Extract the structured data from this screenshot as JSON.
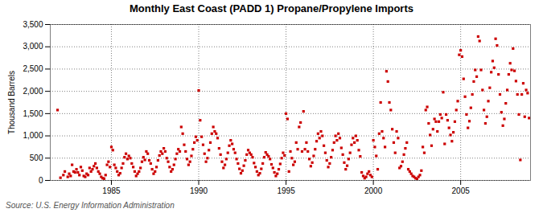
{
  "chart_data": {
    "type": "scatter",
    "title": "Monthly East Coast (PADD 1) Propane/Propylene Imports",
    "ylabel": "Thousand Barrels",
    "annotations": [
      "Source: U.S. Energy Information Administration"
    ],
    "color": "#cc0000",
    "marker": "square",
    "grid": true,
    "xlim": [
      1981.5,
      2009.0
    ],
    "xticks": [
      1985,
      1990,
      1995,
      2000,
      2005
    ],
    "ylim": [
      0,
      3500
    ],
    "yticks": [
      0,
      500,
      {
        "value": 1000,
        "label": "1,000"
      },
      {
        "value": 1500,
        "label": "1,500"
      },
      {
        "value": 2000,
        "label": "2,000"
      },
      {
        "value": 2500,
        "label": "2,500"
      },
      {
        "value": 3000,
        "label": "3,000"
      },
      {
        "value": 3500,
        "label": "3,500"
      }
    ],
    "x": [
      1981.917,
      1982.083,
      1982.25,
      1982.333,
      1982.5,
      1982.583,
      1982.667,
      1982.75,
      1982.833,
      1982.917,
      1983.0,
      1983.083,
      1983.167,
      1983.25,
      1983.333,
      1983.417,
      1983.5,
      1983.583,
      1983.667,
      1983.75,
      1983.833,
      1983.917,
      1984.0,
      1984.083,
      1984.167,
      1984.25,
      1984.333,
      1984.417,
      1984.5,
      1984.583,
      1984.667,
      1984.75,
      1984.833,
      1984.917,
      1985.0,
      1985.083,
      1985.167,
      1985.25,
      1985.333,
      1985.417,
      1985.5,
      1985.583,
      1985.667,
      1985.75,
      1985.833,
      1985.917,
      1986.0,
      1986.083,
      1986.167,
      1986.25,
      1986.333,
      1986.417,
      1986.5,
      1986.583,
      1986.667,
      1986.75,
      1986.833,
      1986.917,
      1987.0,
      1987.083,
      1987.167,
      1987.25,
      1987.333,
      1987.417,
      1987.5,
      1987.583,
      1987.667,
      1987.75,
      1987.833,
      1987.917,
      1988.0,
      1988.083,
      1988.167,
      1988.25,
      1988.333,
      1988.417,
      1988.5,
      1988.583,
      1988.667,
      1988.75,
      1988.833,
      1988.917,
      1989.0,
      1989.083,
      1989.167,
      1989.25,
      1989.333,
      1989.417,
      1989.5,
      1989.583,
      1989.667,
      1989.75,
      1989.833,
      1989.917,
      1990.0,
      1990.083,
      1990.167,
      1990.25,
      1990.333,
      1990.417,
      1990.5,
      1990.583,
      1990.667,
      1990.75,
      1990.833,
      1990.917,
      1991.0,
      1991.083,
      1991.167,
      1991.25,
      1991.333,
      1991.417,
      1991.5,
      1991.583,
      1991.667,
      1991.75,
      1991.833,
      1991.917,
      1992.0,
      1992.083,
      1992.167,
      1992.25,
      1992.333,
      1992.417,
      1992.5,
      1992.583,
      1992.667,
      1992.75,
      1992.833,
      1992.917,
      1993.0,
      1993.083,
      1993.167,
      1993.25,
      1993.333,
      1993.417,
      1993.5,
      1993.583,
      1993.667,
      1993.75,
      1993.833,
      1993.917,
      1994.0,
      1994.083,
      1994.167,
      1994.25,
      1994.333,
      1994.417,
      1994.5,
      1994.583,
      1994.667,
      1994.75,
      1994.833,
      1994.917,
      1995.0,
      1995.083,
      1995.167,
      1995.25,
      1995.333,
      1995.417,
      1995.5,
      1995.583,
      1995.667,
      1995.75,
      1995.833,
      1995.917,
      1996.0,
      1996.083,
      1996.167,
      1996.25,
      1996.333,
      1996.417,
      1996.5,
      1996.583,
      1996.667,
      1996.75,
      1996.833,
      1996.917,
      1997.0,
      1997.083,
      1997.167,
      1997.25,
      1997.333,
      1997.417,
      1997.5,
      1997.583,
      1997.667,
      1997.75,
      1997.833,
      1997.917,
      1998.0,
      1998.083,
      1998.167,
      1998.25,
      1998.333,
      1998.417,
      1998.5,
      1998.583,
      1998.667,
      1998.75,
      1998.833,
      1998.917,
      1999.0,
      1999.083,
      1999.167,
      1999.25,
      1999.333,
      1999.417,
      1999.5,
      1999.583,
      1999.667,
      1999.75,
      1999.833,
      1999.917,
      2000.0,
      2000.083,
      2000.167,
      2000.25,
      2000.333,
      2000.417,
      2000.5,
      2000.583,
      2000.667,
      2000.75,
      2000.833,
      2000.917,
      2001.0,
      2001.083,
      2001.167,
      2001.25,
      2001.333,
      2001.417,
      2001.5,
      2001.583,
      2001.667,
      2001.75,
      2001.833,
      2001.917,
      2002.0,
      2002.083,
      2002.167,
      2002.25,
      2002.333,
      2002.417,
      2002.5,
      2002.583,
      2002.667,
      2002.75,
      2002.833,
      2002.917,
      2003.0,
      2003.083,
      2003.167,
      2003.25,
      2003.333,
      2003.417,
      2003.5,
      2003.583,
      2003.667,
      2003.75,
      2003.833,
      2003.917,
      2004.0,
      2004.083,
      2004.167,
      2004.25,
      2004.333,
      2004.417,
      2004.5,
      2004.583,
      2004.667,
      2004.75,
      2004.833,
      2004.917,
      2005.0,
      2005.083,
      2005.167,
      2005.25,
      2005.333,
      2005.417,
      2005.5,
      2005.583,
      2005.667,
      2005.75,
      2005.833,
      2005.917,
      2006.0,
      2006.083,
      2006.167,
      2006.25,
      2006.333,
      2006.417,
      2006.5,
      2006.583,
      2006.667,
      2006.75,
      2006.833,
      2006.917,
      2007.0,
      2007.083,
      2007.167,
      2007.25,
      2007.333,
      2007.417,
      2007.5,
      2007.583,
      2007.667,
      2007.75,
      2007.833,
      2007.917,
      2008.0,
      2008.083,
      2008.167,
      2008.25,
      2008.333,
      2008.417,
      2008.5,
      2008.583,
      2008.667,
      2008.75,
      2008.833,
      2008.917
    ],
    "values": [
      1580,
      60,
      120,
      200,
      80,
      150,
      100,
      350,
      200,
      180,
      250,
      180,
      120,
      300,
      220,
      100,
      80,
      150,
      120,
      280,
      200,
      250,
      320,
      380,
      280,
      200,
      150,
      80,
      50,
      40,
      120,
      350,
      420,
      300,
      750,
      680,
      350,
      280,
      200,
      120,
      160,
      280,
      380,
      520,
      600,
      480,
      550,
      500,
      380,
      300,
      200,
      100,
      150,
      200,
      280,
      420,
      520,
      460,
      650,
      600,
      450,
      380,
      250,
      150,
      200,
      300,
      450,
      560,
      650,
      600,
      720,
      650,
      500,
      420,
      300,
      200,
      250,
      350,
      480,
      600,
      700,
      650,
      1200,
      1050,
      800,
      650,
      480,
      350,
      420,
      550,
      700,
      850,
      980,
      900,
      2020,
      1350,
      980,
      800,
      600,
      420,
      500,
      680,
      850,
      1050,
      1200,
      1100,
      1050,
      950,
      720,
      580,
      420,
      280,
      350,
      480,
      620,
      780,
      900,
      820,
      700,
      620,
      480,
      380,
      260,
      160,
      220,
      330,
      450,
      580,
      680,
      620,
      580,
      520,
      390,
      300,
      200,
      120,
      160,
      260,
      380,
      520,
      630,
      580,
      540,
      480,
      360,
      280,
      180,
      100,
      150,
      250,
      370,
      500,
      620,
      560,
      1500,
      1380,
      200,
      650,
      500,
      350,
      420,
      850,
      700,
      1200,
      1300,
      650,
      1550,
      700,
      850,
      650,
      480,
      320,
      400,
      550,
      700,
      880,
      1050,
      950,
      1100,
      1000,
      780,
      620,
      450,
      300,
      380,
      520,
      680,
      850,
      1000,
      900,
      1050,
      950,
      730,
      580,
      400,
      250,
      330,
      480,
      620,
      800,
      950,
      850,
      1000,
      900,
      680,
      540,
      180,
      100,
      50,
      80,
      150,
      200,
      120,
      80,
      900,
      750,
      550,
      250,
      1050,
      1750,
      1100,
      950,
      750,
      2450,
      2220,
      1750,
      1580,
      1150,
      850,
      620,
      1100,
      950,
      280,
      320,
      420,
      580,
      720,
      850,
      250,
      200,
      150,
      100,
      80,
      50,
      30,
      80,
      120,
      220,
      750,
      620,
      1580,
      1650,
      1280,
      1020,
      780,
      1150,
      1380,
      1320,
      1100,
      1320,
      1480,
      1400,
      1980,
      820,
      1480,
      1350,
      1180,
      1020,
      880,
      1080,
      1320,
      1580,
      1780,
      2820,
      2920,
      2780,
      2280,
      1880,
      1480,
      1180,
      1330,
      1630,
      1930,
      2220,
      2480,
      2330,
      3230,
      3130,
      2480,
      2030,
      1580,
      1280,
      1430,
      1780,
      2080,
      2430,
      2680,
      2530,
      3180,
      3030,
      2380,
      1930,
      1530,
      1230,
      1380,
      1730,
      2030,
      2380,
      2630,
      2480,
      2960,
      2460,
      2230,
      1930,
      1480,
      460,
      1930,
      2180,
      1430,
      2030,
      1960,
      1400
    ]
  }
}
